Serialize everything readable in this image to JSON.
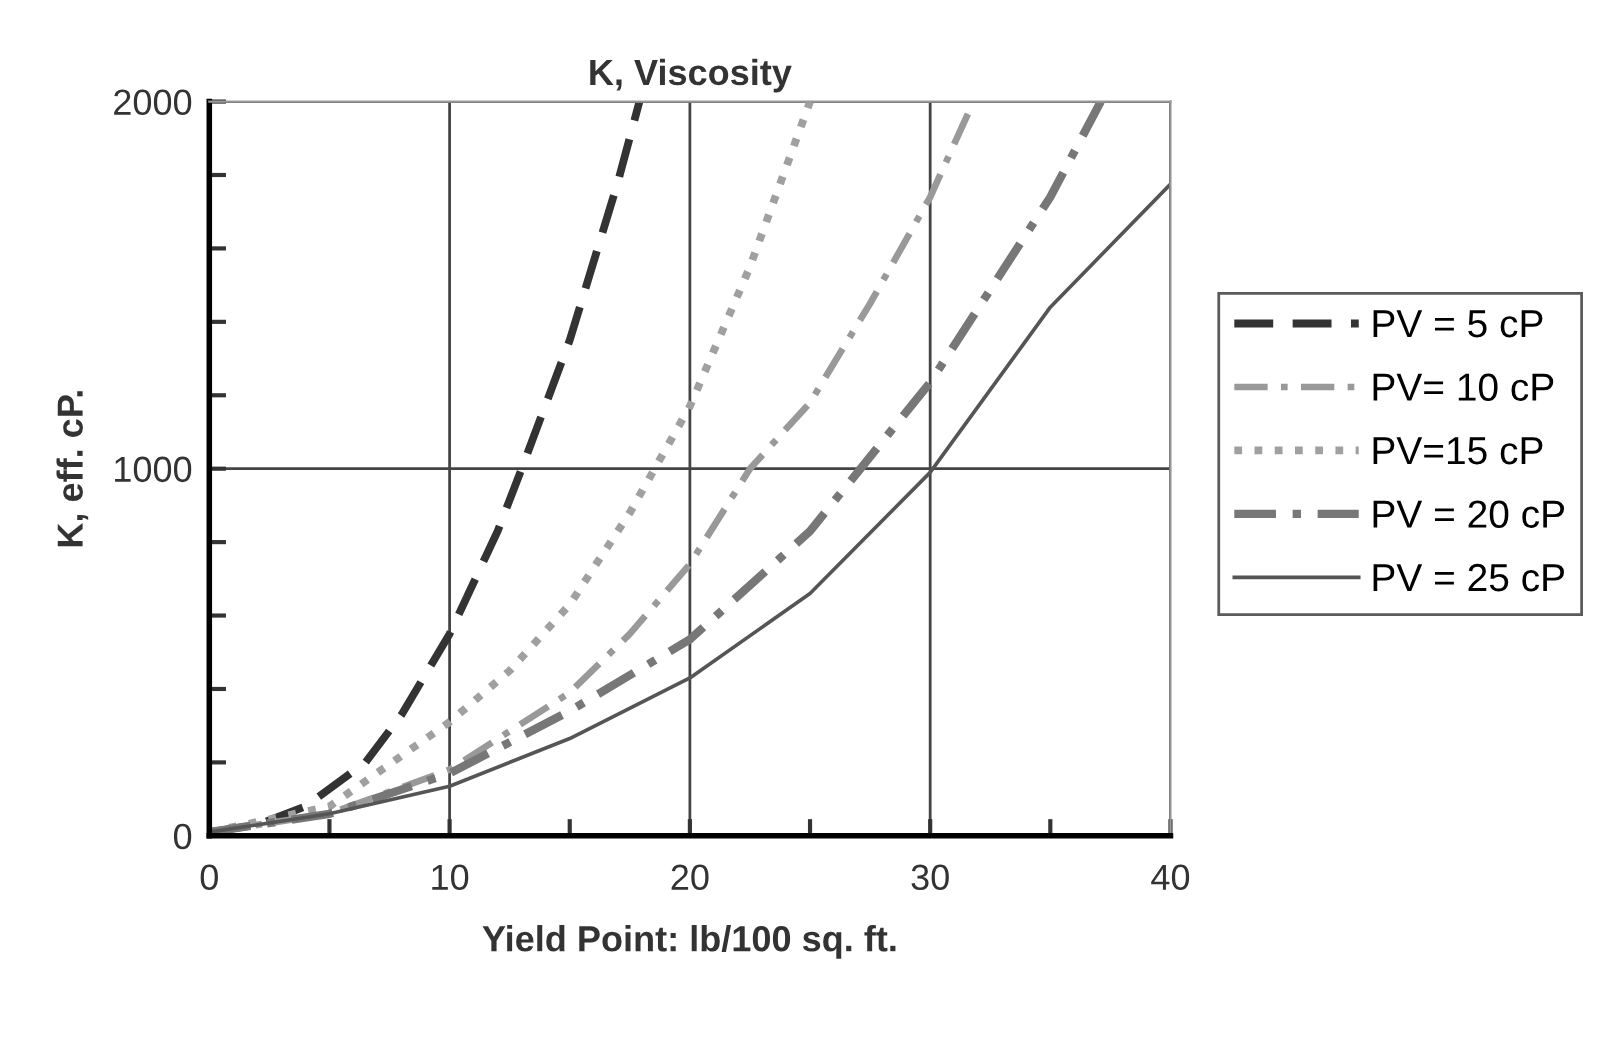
{
  "chart_data": {
    "type": "line",
    "title": "K, Viscosity",
    "xlabel": "Yield Point: lb/100 sq. ft.",
    "ylabel": "K, eff. cP.",
    "xlim": [
      0,
      40
    ],
    "ylim": [
      0,
      2000
    ],
    "xticks": [
      0,
      {
        "value": 5,
        "label": null
      },
      10,
      {
        "value": 15,
        "label": null
      },
      20,
      {
        "value": 25,
        "label": null
      },
      30,
      {
        "value": 35,
        "label": null
      },
      40
    ],
    "yticks": [
      0,
      {
        "value": 200,
        "label": null
      },
      {
        "value": 400,
        "label": null
      },
      {
        "value": 600,
        "label": null
      },
      {
        "value": 800,
        "label": null
      },
      1000,
      {
        "value": 1200,
        "label": null
      },
      {
        "value": 1400,
        "label": null
      },
      {
        "value": 1600,
        "label": null
      },
      {
        "value": 1800,
        "label": null
      },
      2000
    ],
    "grid": true,
    "legend": "right",
    "marker": "none",
    "series": [
      {
        "name": "PV = 5 cP",
        "color": "#333333",
        "line_style": "dashed",
        "x": [
          0,
          2,
          4,
          6.5,
          8,
          10,
          12,
          13,
          15,
          17,
          17.9
        ],
        "values": [
          10,
          30,
          80,
          200,
          330,
          550,
          830,
          1000,
          1350,
          1780,
          2000
        ]
      },
      {
        "name": "PV= 10 cP",
        "color": "#999999",
        "line_style": "dashdot",
        "x": [
          0,
          5,
          10,
          15,
          17.5,
          20,
          22.5,
          25,
          27.5,
          30,
          31.8
        ],
        "values": [
          10,
          60,
          180,
          390,
          550,
          740,
          1000,
          1180,
          1450,
          1740,
          2000
        ]
      },
      {
        "name": "PV=15 cP",
        "color": "#a0a0a0",
        "line_style": "dotted",
        "x": [
          0,
          5,
          10,
          12.5,
          15,
          17.5,
          20,
          22.5,
          25
        ],
        "values": [
          10,
          80,
          310,
          450,
          630,
          880,
          1170,
          1550,
          2000
        ]
      },
      {
        "name": "PV = 20 cP",
        "color": "#777777",
        "line_style": "dashdot",
        "x": [
          0,
          5,
          10,
          15,
          20,
          25,
          30,
          35,
          37.1
        ],
        "values": [
          10,
          60,
          170,
          340,
          535,
          830,
          1235,
          1740,
          2000
        ]
      },
      {
        "name": "PV = 25 cP",
        "color": "#555555",
        "line_style": "solid",
        "x": [
          0,
          5,
          10,
          15,
          20,
          25,
          30,
          35,
          40
        ],
        "values": [
          10,
          60,
          135,
          265,
          430,
          660,
          990,
          1440,
          1775
        ]
      }
    ]
  }
}
